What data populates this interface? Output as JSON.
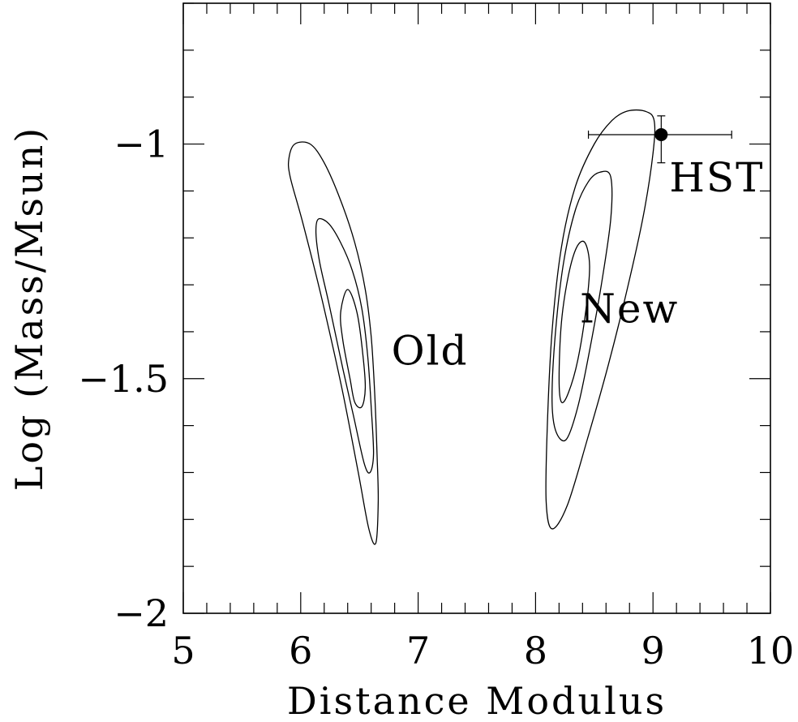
{
  "chart_data": {
    "type": "contour",
    "title": "",
    "xlabel": "Distance Modulus",
    "ylabel": "Log (Mass/Msun)",
    "xlim": [
      5,
      10
    ],
    "ylim": [
      -2,
      -0.7
    ],
    "xticks": [
      5,
      6,
      7,
      8,
      9,
      10
    ],
    "yticks": [
      -2,
      -1.5,
      -1
    ],
    "xtick_labels": [
      "5",
      "6",
      "7",
      "8",
      "9",
      "10"
    ],
    "ytick_labels": [
      "−2",
      "−1.5",
      "−1"
    ],
    "grid": false,
    "contour_groups": [
      {
        "name": "Old",
        "label_position": [
          7.1,
          -1.47
        ],
        "levels": [
          [
            [
              6.4,
              -1.31
            ],
            [
              6.48,
              -1.36
            ],
            [
              6.53,
              -1.45
            ],
            [
              6.55,
              -1.52
            ],
            [
              6.52,
              -1.56
            ],
            [
              6.46,
              -1.55
            ],
            [
              6.42,
              -1.5
            ],
            [
              6.36,
              -1.42
            ],
            [
              6.34,
              -1.36
            ],
            [
              6.36,
              -1.31
            ]
          ],
          [
            [
              6.15,
              -1.16
            ],
            [
              6.24,
              -1.17
            ],
            [
              6.34,
              -1.21
            ],
            [
              6.44,
              -1.27
            ],
            [
              6.52,
              -1.35
            ],
            [
              6.57,
              -1.45
            ],
            [
              6.6,
              -1.56
            ],
            [
              6.62,
              -1.66
            ],
            [
              6.59,
              -1.7
            ],
            [
              6.54,
              -1.68
            ],
            [
              6.45,
              -1.58
            ],
            [
              6.36,
              -1.48
            ],
            [
              6.24,
              -1.34
            ],
            [
              6.16,
              -1.25
            ],
            [
              6.13,
              -1.19
            ],
            [
              6.15,
              -1.16
            ]
          ],
          [
            [
              5.95,
              -1.0
            ],
            [
              6.08,
              -1.0
            ],
            [
              6.2,
              -1.04
            ],
            [
              6.34,
              -1.12
            ],
            [
              6.46,
              -1.21
            ],
            [
              6.55,
              -1.31
            ],
            [
              6.6,
              -1.41
            ],
            [
              6.63,
              -1.53
            ],
            [
              6.65,
              -1.66
            ],
            [
              6.66,
              -1.76
            ],
            [
              6.64,
              -1.85
            ],
            [
              6.58,
              -1.82
            ],
            [
              6.49,
              -1.7
            ],
            [
              6.35,
              -1.52
            ],
            [
              6.18,
              -1.33
            ],
            [
              6.02,
              -1.17
            ],
            [
              5.91,
              -1.07
            ],
            [
              5.9,
              -1.03
            ],
            [
              5.95,
              -1.0
            ]
          ]
        ]
      },
      {
        "name": "New",
        "label_position": [
          8.8,
          -1.38
        ],
        "levels": [
          [
            [
              8.42,
              -1.21
            ],
            [
              8.46,
              -1.26
            ],
            [
              8.43,
              -1.35
            ],
            [
              8.36,
              -1.46
            ],
            [
              8.28,
              -1.53
            ],
            [
              8.22,
              -1.55
            ],
            [
              8.2,
              -1.5
            ],
            [
              8.22,
              -1.38
            ],
            [
              8.28,
              -1.28
            ],
            [
              8.35,
              -1.22
            ],
            [
              8.42,
              -1.21
            ]
          ],
          [
            [
              8.55,
              -1.06
            ],
            [
              8.64,
              -1.07
            ],
            [
              8.64,
              -1.16
            ],
            [
              8.56,
              -1.3
            ],
            [
              8.46,
              -1.44
            ],
            [
              8.36,
              -1.56
            ],
            [
              8.26,
              -1.63
            ],
            [
              8.17,
              -1.61
            ],
            [
              8.14,
              -1.54
            ],
            [
              8.17,
              -1.4
            ],
            [
              8.24,
              -1.25
            ],
            [
              8.34,
              -1.14
            ],
            [
              8.45,
              -1.08
            ],
            [
              8.55,
              -1.06
            ]
          ],
          [
            [
              8.78,
              -0.93
            ],
            [
              8.93,
              -0.93
            ],
            [
              9.01,
              -0.95
            ],
            [
              9.0,
              -1.02
            ],
            [
              8.92,
              -1.15
            ],
            [
              8.78,
              -1.31
            ],
            [
              8.62,
              -1.47
            ],
            [
              8.44,
              -1.63
            ],
            [
              8.27,
              -1.77
            ],
            [
              8.14,
              -1.82
            ],
            [
              8.09,
              -1.76
            ],
            [
              8.1,
              -1.6
            ],
            [
              8.14,
              -1.4
            ],
            [
              8.22,
              -1.22
            ],
            [
              8.34,
              -1.09
            ],
            [
              8.5,
              -1.0
            ],
            [
              8.65,
              -0.95
            ],
            [
              8.78,
              -0.93
            ]
          ]
        ]
      }
    ],
    "points": [
      {
        "name": "HST",
        "x": 9.07,
        "y": -0.98,
        "xerr": [
          0.62,
          0.6
        ],
        "yerr": [
          0.04,
          0.06
        ]
      }
    ]
  }
}
